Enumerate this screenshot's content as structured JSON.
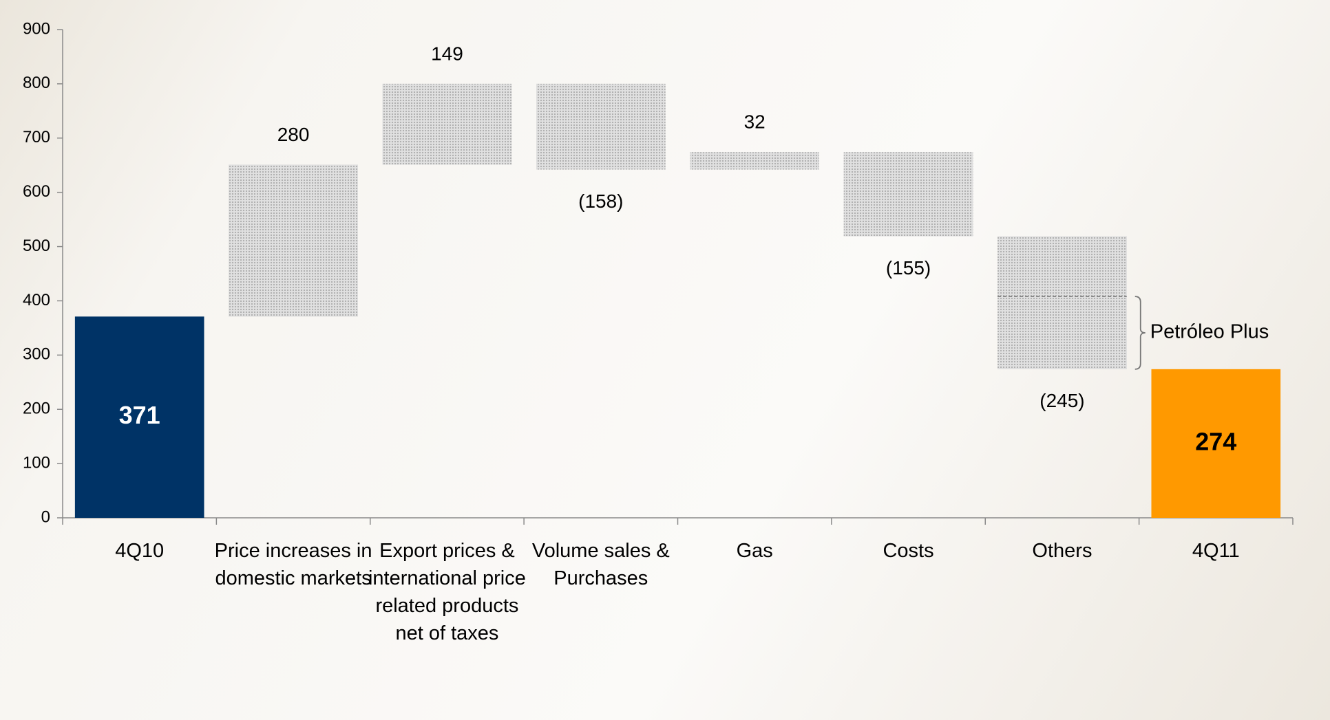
{
  "chart_data": {
    "type": "waterfall",
    "categories": [
      "4Q10",
      "Price increases in domestic markets",
      "Export prices & international price related products net of taxes",
      "Volume sales & Purchases",
      "Gas",
      "Costs",
      "Others",
      "4Q11"
    ],
    "values": [
      371,
      280,
      149,
      -158,
      32,
      -155,
      -245,
      274
    ],
    "value_labels": [
      "371",
      "280",
      "149",
      "(158)",
      "32",
      "(155)",
      "(245)",
      "274"
    ],
    "measures": [
      "absolute",
      "relative",
      "relative",
      "relative",
      "relative",
      "relative",
      "relative",
      "total"
    ],
    "colors": [
      "#003366",
      "#cfcfcf",
      "#cfcfcf",
      "#cfcfcf",
      "#cfcfcf",
      "#cfcfcf",
      "#cfcfcf",
      "#ff9900"
    ],
    "ylim": [
      0,
      900
    ],
    "yticks": [
      0,
      100,
      200,
      300,
      400,
      500,
      600,
      700,
      800,
      900
    ],
    "annotation": {
      "text": "Petróleo Plus",
      "range": [
        274,
        408
      ]
    }
  }
}
